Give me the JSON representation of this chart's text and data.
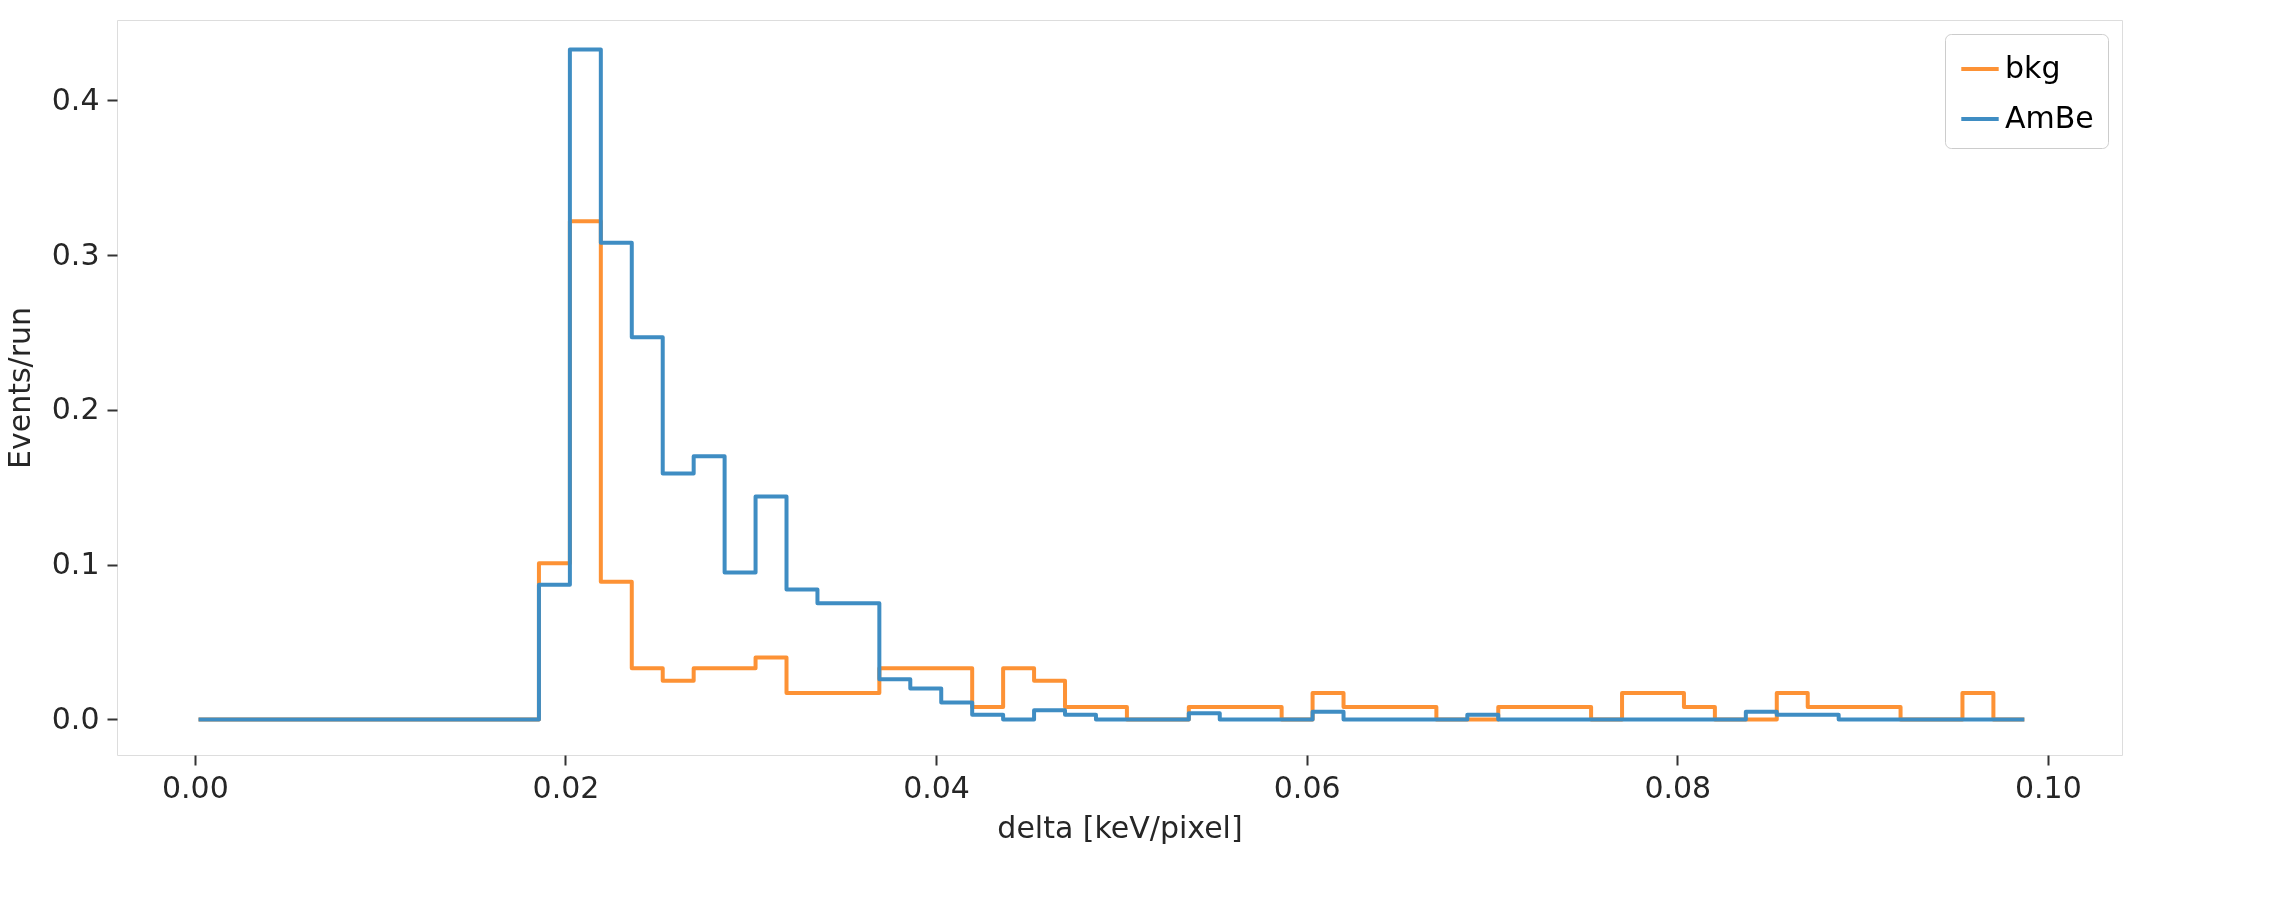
{
  "chart_data": {
    "type": "histogram",
    "xlabel": "delta [keV/pixel]",
    "ylabel": "Events/run",
    "bins": [
      0.0002,
      0.00187,
      0.00354,
      0.00521,
      0.00688,
      0.00855,
      0.01022,
      0.01189,
      0.01356,
      0.01523,
      0.0169,
      0.01857,
      0.02024,
      0.02191,
      0.02358,
      0.02525,
      0.02692,
      0.02859,
      0.03026,
      0.03193,
      0.0336,
      0.03527,
      0.03694,
      0.03861,
      0.04028,
      0.04195,
      0.04362,
      0.04529,
      0.04696,
      0.04863,
      0.0503,
      0.05197,
      0.05364,
      0.05531,
      0.05698,
      0.05865,
      0.06032,
      0.06199,
      0.06366,
      0.06533,
      0.067,
      0.06867,
      0.07034,
      0.07201,
      0.07368,
      0.07535,
      0.07702,
      0.07869,
      0.08036,
      0.08203,
      0.0837,
      0.08537,
      0.08704,
      0.08871,
      0.09038,
      0.09205,
      0.09372,
      0.09539,
      0.09706,
      0.09873
    ],
    "series": [
      {
        "name": "bkg",
        "color": "#fd9235",
        "values": [
          0,
          0,
          0,
          0,
          0,
          0,
          0,
          0,
          0,
          0,
          0,
          0.101,
          0.322,
          0.089,
          0.033,
          0.025,
          0.033,
          0.033,
          0.04,
          0.017,
          0.017,
          0.017,
          0.033,
          0.033,
          0.033,
          0.008,
          0.033,
          0.025,
          0.008,
          0.008,
          0,
          0,
          0.008,
          0.008,
          0.008,
          0,
          0.017,
          0.008,
          0.008,
          0.008,
          0,
          0,
          0.008,
          0.008,
          0.008,
          0,
          0.017,
          0.017,
          0.008,
          0,
          0,
          0.017,
          0.008,
          0.008,
          0.008,
          0,
          0,
          0.017,
          0
        ]
      },
      {
        "name": "AmBe",
        "color": "#3f8dc3",
        "values": [
          0,
          0,
          0,
          0,
          0,
          0,
          0,
          0,
          0,
          0,
          0,
          0.087,
          0.433,
          0.308,
          0.247,
          0.159,
          0.17,
          0.095,
          0.144,
          0.084,
          0.075,
          0.075,
          0.026,
          0.02,
          0.011,
          0.003,
          0,
          0.006,
          0.003,
          0,
          0,
          0,
          0.004,
          0,
          0,
          0,
          0.005,
          0,
          0,
          0,
          0,
          0.003,
          0,
          0,
          0,
          0,
          0,
          0,
          0,
          0,
          0.005,
          0.003,
          0.003,
          0,
          0,
          0,
          0,
          0,
          0
        ]
      }
    ],
    "xlim": [
      -0.0042,
      0.104
    ],
    "ylim": [
      -0.023,
      0.452
    ],
    "xticks": [
      {
        "value": 0,
        "label": "0.00"
      },
      {
        "value": 0.02,
        "label": "0.02"
      },
      {
        "value": 0.04,
        "label": "0.04"
      },
      {
        "value": 0.06,
        "label": "0.06"
      },
      {
        "value": 0.08,
        "label": "0.08"
      },
      {
        "value": 0.1,
        "label": "0.10"
      }
    ],
    "yticks": [
      {
        "value": 0,
        "label": "0.0"
      },
      {
        "value": 0.1,
        "label": "0.1"
      },
      {
        "value": 0.2,
        "label": "0.2"
      },
      {
        "value": 0.3,
        "label": "0.3"
      },
      {
        "value": 0.4,
        "label": "0.4"
      }
    ],
    "legend": "top right",
    "grid": false
  }
}
